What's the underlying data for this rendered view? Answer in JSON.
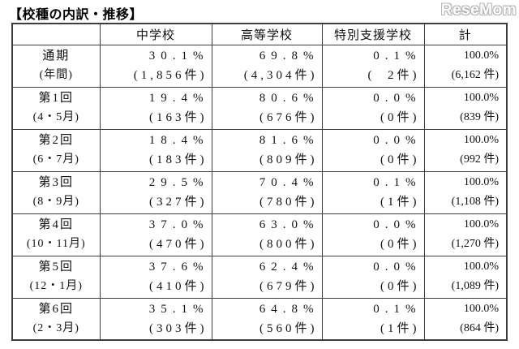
{
  "page": {
    "title": "【校種の内訳・推移】",
    "logo": "ReseMom"
  },
  "colors": {
    "background": "#ffffff",
    "border": "#3d3d3d",
    "text": "#111111",
    "logo_outline": "#b3b3b3",
    "logo_fill": "#ffffff"
  },
  "table": {
    "headers": {
      "period": "",
      "chugakko": "中学校",
      "kotogakko": "高等学校",
      "tokubetsu": "特別支援学校",
      "kei": "計"
    },
    "rows": [
      {
        "period": "通期",
        "period_sub": "(年間)",
        "chu_pct": "30.1%",
        "chu_cnt": "(1,856件)",
        "koto_pct": "69.8%",
        "koto_cnt": "(4,304件)",
        "toku_pct": "0.1%",
        "toku_cnt": "(  2件)",
        "kei_pct": "100.0%",
        "kei_cnt": "(6,162 件)"
      },
      {
        "period": "第1回",
        "period_sub": "(4・5月)",
        "chu_pct": "19.4%",
        "chu_cnt": "(163件)",
        "koto_pct": "80.6%",
        "koto_cnt": "(676件)",
        "toku_pct": "0.0%",
        "toku_cnt": "(0件)",
        "kei_pct": "100.0%",
        "kei_cnt": "(839 件)"
      },
      {
        "period": "第2回",
        "period_sub": "(6・7月)",
        "chu_pct": "18.4%",
        "chu_cnt": "(183件)",
        "koto_pct": "81.6%",
        "koto_cnt": "(809件)",
        "toku_pct": "0.0%",
        "toku_cnt": "(0件)",
        "kei_pct": "100.0%",
        "kei_cnt": "(992 件)"
      },
      {
        "period": "第3回",
        "period_sub": "(8・9月)",
        "chu_pct": "29.5%",
        "chu_cnt": "(327件)",
        "koto_pct": "70.4%",
        "koto_cnt": "(780件)",
        "toku_pct": "0.1%",
        "toku_cnt": "(1件)",
        "kei_pct": "100.0%",
        "kei_cnt": "(1,108 件)"
      },
      {
        "period": "第4回",
        "period_sub": "(10・11月)",
        "chu_pct": "37.0%",
        "chu_cnt": "(470件)",
        "koto_pct": "63.0%",
        "koto_cnt": "(800件)",
        "toku_pct": "0.0%",
        "toku_cnt": "(0件)",
        "kei_pct": "100.0%",
        "kei_cnt": "(1,270 件)"
      },
      {
        "period": "第5回",
        "period_sub": "(12・1月)",
        "chu_pct": "37.6%",
        "chu_cnt": "(410件)",
        "koto_pct": "62.4%",
        "koto_cnt": "(679件)",
        "toku_pct": "0.0%",
        "toku_cnt": "(0件)",
        "kei_pct": "100.0%",
        "kei_cnt": "(1,089 件)"
      },
      {
        "period": "第6回",
        "period_sub": "(2・3月)",
        "chu_pct": "35.1%",
        "chu_cnt": "(303件)",
        "koto_pct": "64.8%",
        "koto_cnt": "(560件)",
        "toku_pct": "0.1%",
        "toku_cnt": "(1件)",
        "kei_pct": "100.0%",
        "kei_cnt": "(864 件)"
      }
    ]
  },
  "chart_data": {
    "type": "table",
    "title": "校種の内訳・推移",
    "categories": [
      "通期(年間)",
      "第1回(4・5月)",
      "第2回(6・7月)",
      "第3回(8・9月)",
      "第4回(10・11月)",
      "第5回(12・1月)",
      "第6回(2・3月)"
    ],
    "series": [
      {
        "name": "中学校",
        "percent": [
          30.1,
          19.4,
          18.4,
          29.5,
          37.0,
          37.6,
          35.1
        ],
        "count": [
          1856,
          163,
          183,
          327,
          470,
          410,
          303
        ]
      },
      {
        "name": "高等学校",
        "percent": [
          69.8,
          80.6,
          81.6,
          70.4,
          63.0,
          62.4,
          64.8
        ],
        "count": [
          4304,
          676,
          809,
          780,
          800,
          679,
          560
        ]
      },
      {
        "name": "特別支援学校",
        "percent": [
          0.1,
          0.0,
          0.0,
          0.1,
          0.0,
          0.0,
          0.1
        ],
        "count": [
          2,
          0,
          0,
          1,
          0,
          0,
          1
        ]
      },
      {
        "name": "計",
        "percent": [
          100.0,
          100.0,
          100.0,
          100.0,
          100.0,
          100.0,
          100.0
        ],
        "count": [
          6162,
          839,
          992,
          1108,
          1270,
          1089,
          864
        ]
      }
    ]
  }
}
